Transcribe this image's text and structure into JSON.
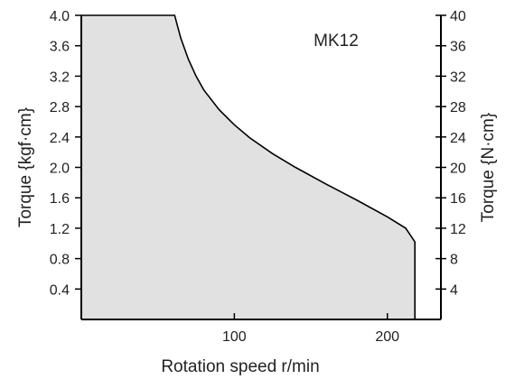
{
  "chart_data": {
    "type": "area",
    "title": "MK12",
    "xlabel": "Rotation speed r/min",
    "ylabel_left": "Torque {kgf·cm}",
    "ylabel_right": "Torque {N·cm}",
    "xlim": [
      0,
      235
    ],
    "ylim_left": [
      0,
      4.0
    ],
    "ylim_right": [
      0,
      40
    ],
    "x_ticks": [
      100,
      200
    ],
    "y_ticks_left": [
      0.4,
      0.8,
      1.2,
      1.6,
      2.0,
      2.4,
      2.8,
      3.2,
      3.6,
      4.0
    ],
    "y_ticks_right": [
      4,
      8,
      12,
      16,
      20,
      24,
      28,
      32,
      36,
      40
    ],
    "series": [
      {
        "x": [
          0,
          61,
          65,
          70,
          75,
          80,
          90,
          100,
          110,
          125,
          140,
          160,
          180,
          200,
          212,
          218,
          218
        ],
        "y": [
          4.0,
          4.0,
          3.7,
          3.42,
          3.2,
          3.02,
          2.76,
          2.56,
          2.39,
          2.18,
          2.0,
          1.78,
          1.57,
          1.35,
          1.2,
          1.02,
          0
        ],
        "fill": "#e1e1e1",
        "stroke": "#000000"
      }
    ]
  }
}
